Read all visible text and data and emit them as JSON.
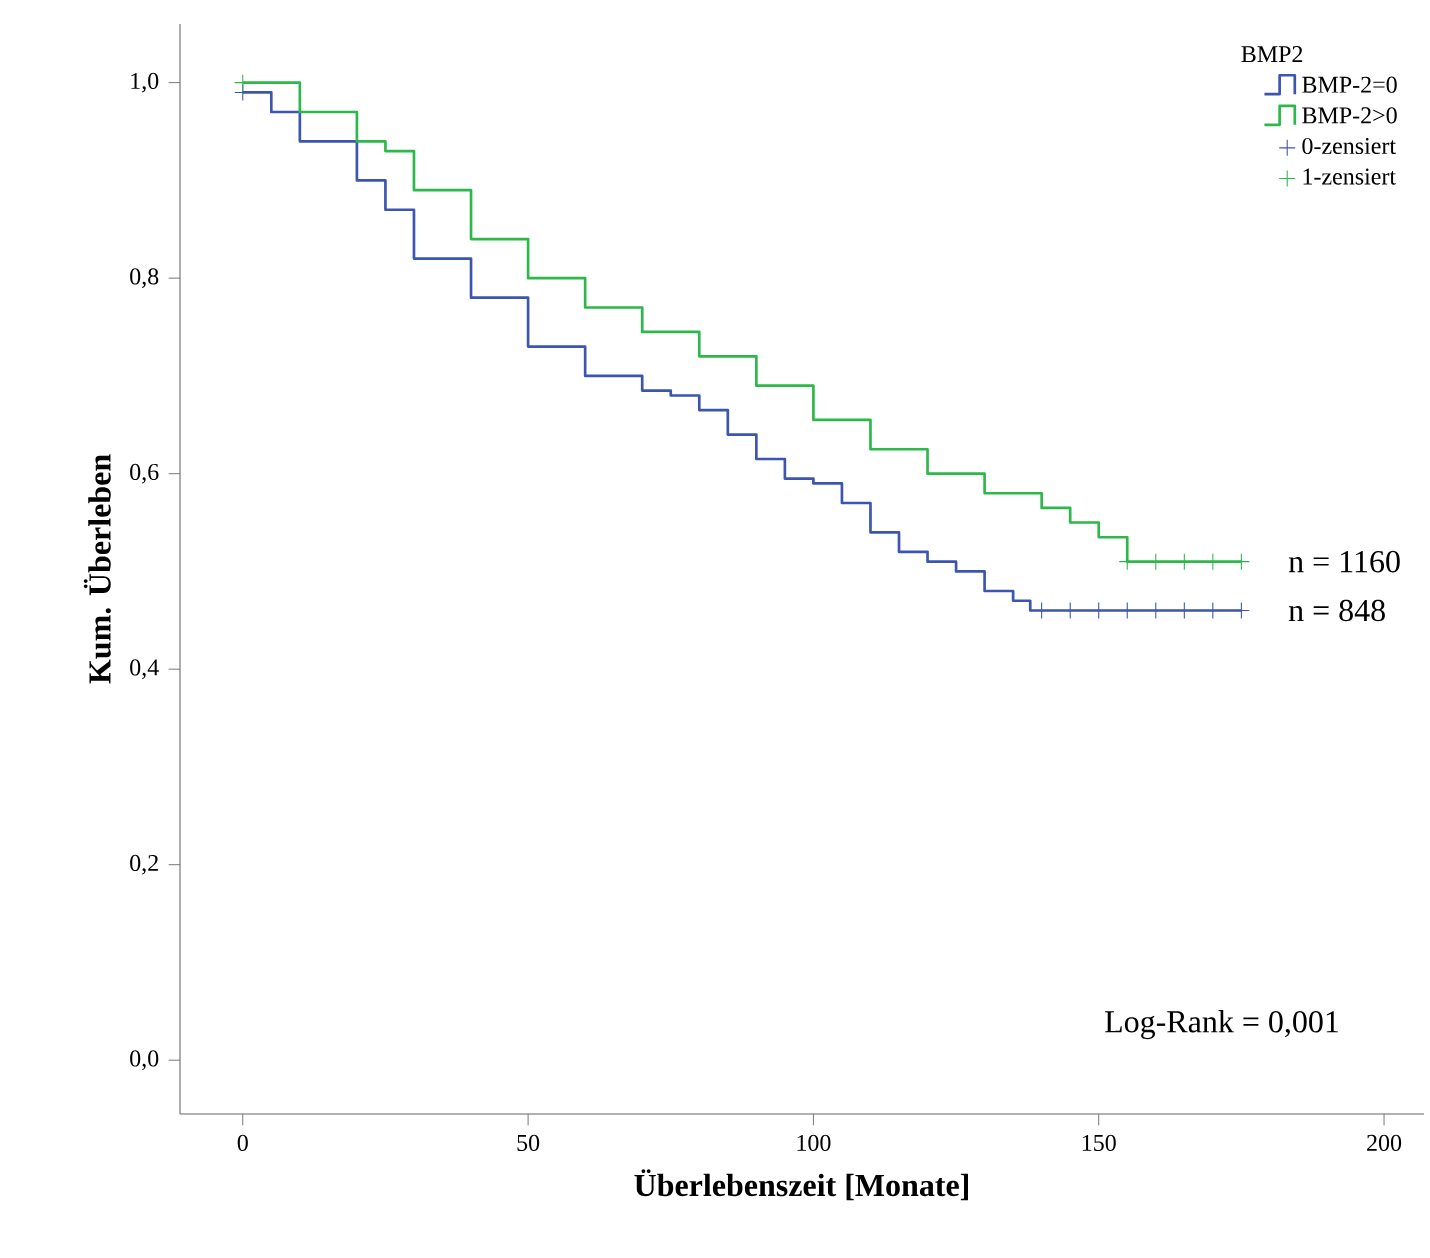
{
  "chart_data": {
    "type": "step",
    "xlabel": "Überlebenszeit [Monate]",
    "ylabel": "Kum. Überleben",
    "legend_title": "BMP2",
    "legend": "top right",
    "grid": false,
    "xlim": [
      -11,
      207
    ],
    "ylim": [
      -0.055,
      1.06
    ],
    "xticks": [
      0,
      50,
      100,
      150,
      200
    ],
    "yticks": [
      {
        "value": 0,
        "label": "0,0"
      },
      {
        "value": 0.2,
        "label": "0,2"
      },
      {
        "value": 0.4,
        "label": "0,4"
      },
      {
        "value": 0.6,
        "label": "0,6"
      },
      {
        "value": 0.8,
        "label": "0,8"
      },
      {
        "value": 1,
        "label": "1,0"
      }
    ],
    "series": [
      {
        "name": "BMP-2=0",
        "color": "#3c55b0",
        "x": [
          0,
          5,
          10,
          20,
          25,
          30,
          40,
          50,
          60,
          70,
          75,
          80,
          85,
          90,
          95,
          100,
          105,
          110,
          115,
          120,
          125,
          130,
          135,
          138,
          175
        ],
        "values": [
          0.99,
          0.97,
          0.94,
          0.9,
          0.87,
          0.82,
          0.78,
          0.73,
          0.7,
          0.685,
          0.68,
          0.665,
          0.64,
          0.615,
          0.595,
          0.59,
          0.57,
          0.54,
          0.52,
          0.51,
          0.5,
          0.48,
          0.47,
          0.46,
          0.46
        ]
      },
      {
        "name": "BMP-2>0",
        "color": "#2db84a",
        "x": [
          0,
          10,
          20,
          25,
          30,
          40,
          50,
          60,
          70,
          80,
          90,
          100,
          110,
          120,
          130,
          140,
          145,
          150,
          155,
          175
        ],
        "values": [
          1.0,
          0.97,
          0.94,
          0.93,
          0.89,
          0.84,
          0.8,
          0.77,
          0.745,
          0.72,
          0.69,
          0.655,
          0.625,
          0.6,
          0.58,
          0.565,
          0.55,
          0.535,
          0.51,
          0.51
        ]
      },
      {
        "name": "0-zensiert",
        "type": "scatter",
        "marker": "cross",
        "color": "#3c55b0",
        "x": [
          0,
          140,
          145,
          150,
          155,
          160,
          165,
          170,
          175
        ],
        "values": [
          0.99,
          0.46,
          0.46,
          0.46,
          0.46,
          0.46,
          0.46,
          0.46,
          0.46
        ]
      },
      {
        "name": "1-zensiert",
        "type": "scatter",
        "marker": "cross",
        "color": "#2db84a",
        "x": [
          0,
          155,
          160,
          165,
          170,
          175
        ],
        "values": [
          1.0,
          0.51,
          0.51,
          0.51,
          0.51,
          0.51
        ]
      }
    ],
    "annotations": [
      {
        "text": "n = 1160",
        "x": 175,
        "y": 0.51
      },
      {
        "text": "n = 848",
        "x": 175,
        "y": 0.46
      },
      "Log-Rank = 0,001"
    ]
  }
}
